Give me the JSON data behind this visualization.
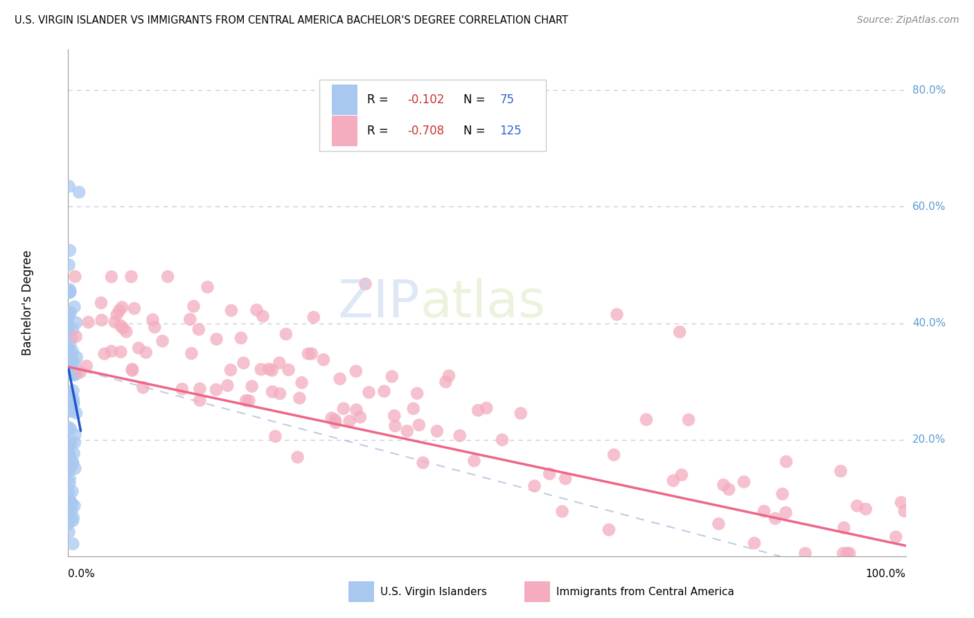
{
  "title": "U.S. VIRGIN ISLANDER VS IMMIGRANTS FROM CENTRAL AMERICA BACHELOR'S DEGREE CORRELATION CHART",
  "source": "Source: ZipAtlas.com",
  "ylabel": "Bachelor's Degree",
  "right_yticks": [
    "80.0%",
    "60.0%",
    "40.0%",
    "20.0%"
  ],
  "right_ytick_vals": [
    0.8,
    0.6,
    0.4,
    0.2
  ],
  "color_blue": "#A8C8F0",
  "color_pink": "#F4ACBE",
  "color_blue_line": "#2255CC",
  "color_pink_line": "#EE6688",
  "color_dashed": "#AABBDD",
  "watermark_zip": "ZIP",
  "watermark_atlas": "atlas",
  "ylim_max": 0.87,
  "xlim_max": 1.0
}
